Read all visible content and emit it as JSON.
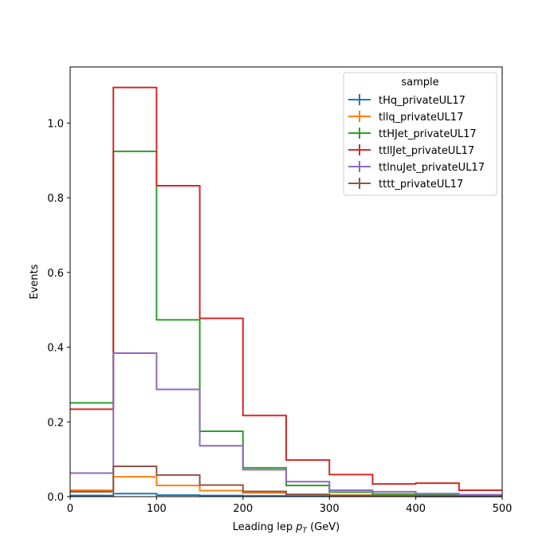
{
  "chart_data": {
    "type": "step",
    "title": "",
    "xlabel": "Leading lep",
    "xlabel_symbol": "p",
    "xlabel_subscript": "T",
    "xlabel_unit": "(GeV)",
    "ylabel": "Events",
    "xlim": [
      0,
      500
    ],
    "ylim": [
      0,
      1.15
    ],
    "xticks": [
      0,
      100,
      200,
      300,
      400,
      500
    ],
    "yticks": [
      0.0,
      0.2,
      0.4,
      0.6,
      0.8,
      1.0
    ],
    "ytick_labels": [
      "0.0",
      "0.2",
      "0.4",
      "0.6",
      "0.8",
      "1.0"
    ],
    "grid": false,
    "legend_title": "sample",
    "legend_position": "top-right",
    "bin_edges": [
      0,
      50,
      100,
      150,
      200,
      250,
      300,
      350,
      400,
      450,
      500
    ],
    "series": [
      {
        "name": "tHq_privateUL17",
        "color": "#1f77b4",
        "values": [
          0.003,
          0.008,
          0.004,
          0.003,
          0.002,
          0.001,
          0.001,
          0.001,
          0.0005,
          0.0005
        ]
      },
      {
        "name": "tllq_privateUL17",
        "color": "#ff7f0e",
        "values": [
          0.017,
          0.053,
          0.03,
          0.016,
          0.01,
          0.006,
          0.004,
          0.003,
          0.002,
          0.002
        ]
      },
      {
        "name": "ttHJet_privateUL17",
        "color": "#2ca02c",
        "values": [
          0.251,
          0.924,
          0.473,
          0.175,
          0.077,
          0.03,
          0.012,
          0.007,
          0.005,
          0.003
        ]
      },
      {
        "name": "ttllJet_privateUL17",
        "color": "#d62728",
        "values": [
          0.234,
          1.095,
          0.832,
          0.477,
          0.217,
          0.098,
          0.059,
          0.034,
          0.036,
          0.017
        ]
      },
      {
        "name": "ttlnuJet_privateUL17",
        "color": "#9467bd",
        "values": [
          0.063,
          0.384,
          0.287,
          0.136,
          0.072,
          0.04,
          0.017,
          0.013,
          0.008,
          0.005
        ]
      },
      {
        "name": "tttt_privateUL17",
        "color": "#8c564b",
        "values": [
          0.013,
          0.081,
          0.058,
          0.031,
          0.014,
          0.006,
          0.003,
          0.002,
          0.001,
          0.001
        ]
      }
    ]
  }
}
